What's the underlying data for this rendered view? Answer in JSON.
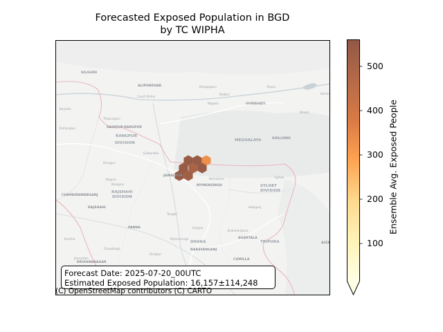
{
  "title_line1": "Forecasted Exposed Population in BGD",
  "title_line2": "by TC WIPHA",
  "info": {
    "forecast_date": "Forecast Date: 2025-07-20_00UTC",
    "estimated_population": "Estimated Exposed Population: 16,157±114,248"
  },
  "attribution": "(C) OpenStreetMap contributors (C) CARTO",
  "colorbar": {
    "label": "Ensemble Avg. Exposed People",
    "ticks": [
      "100",
      "200",
      "300",
      "400",
      "500"
    ],
    "tick_values": [
      100,
      200,
      300,
      400,
      500
    ],
    "range": [
      15,
      560
    ],
    "extend": "min",
    "colors": [
      "#ffffe5",
      "#fff3b6",
      "#fed98e",
      "#fea450",
      "#d97a45",
      "#b56a48",
      "#925845"
    ]
  },
  "map_labels": [
    {
      "text": "SILIGURI",
      "cls": ""
    },
    {
      "text": "ALIPURDUAR",
      "cls": ""
    },
    {
      "text": "Bongaigaon",
      "cls": "sm"
    },
    {
      "text": "Tezpur",
      "cls": "sm"
    },
    {
      "text": "Cooch Behar",
      "cls": "sm"
    },
    {
      "text": "Barpeta",
      "cls": "sm"
    },
    {
      "text": "Nalbari",
      "cls": "sm"
    },
    {
      "text": "GUWAHATI",
      "cls": ""
    },
    {
      "text": "Nagaon",
      "cls": "sm"
    },
    {
      "text": "Dhubri",
      "cls": "sm"
    },
    {
      "text": "Kishanganj",
      "cls": "sm"
    },
    {
      "text": "Thakurgaon",
      "cls": "sm"
    },
    {
      "text": "SAIDPUR",
      "cls": ""
    },
    {
      "text": "RANGPUR",
      "cls": ""
    },
    {
      "text": "RANGPUR",
      "cls": "big"
    },
    {
      "text": "DIVISION",
      "cls": "big"
    },
    {
      "text": "MEGHALAYA",
      "cls": "big"
    },
    {
      "text": "SHILLONG",
      "cls": ""
    },
    {
      "text": "Gaibandha",
      "cls": "sm"
    },
    {
      "text": "Dinajpur",
      "cls": "sm"
    },
    {
      "text": "JAMALPUR",
      "cls": ""
    },
    {
      "text": "Netrakona",
      "cls": "sm"
    },
    {
      "text": "MYMENSINGH",
      "cls": ""
    },
    {
      "text": "Naogaon",
      "cls": "sm"
    },
    {
      "text": "RAJSHAHI",
      "cls": "big"
    },
    {
      "text": "DIVISION",
      "cls": "big"
    },
    {
      "text": "Bogura",
      "cls": "sm"
    },
    {
      "text": "Sylhet",
      "cls": "sm"
    },
    {
      "text": "SYLHET",
      "cls": "big"
    },
    {
      "text": "DIVISION",
      "cls": "big"
    },
    {
      "text": "CHAPAINAWABGANJ",
      "cls": ""
    },
    {
      "text": "RAJSHAHI",
      "cls": ""
    },
    {
      "text": "Tangail",
      "cls": "sm"
    },
    {
      "text": "Habiganj",
      "cls": "sm"
    },
    {
      "text": "PABNA",
      "cls": ""
    },
    {
      "text": "Gazipur",
      "cls": "sm"
    },
    {
      "text": "Brahmanbaria",
      "cls": "sm"
    },
    {
      "text": "Kushtia",
      "cls": "sm"
    },
    {
      "text": "DHAKA",
      "cls": "big"
    },
    {
      "text": "AGARTALA",
      "cls": ""
    },
    {
      "text": "TRIPURA",
      "cls": "big"
    },
    {
      "text": "Chuadanga",
      "cls": "sm"
    },
    {
      "text": "NARAYANGANJ",
      "cls": ""
    },
    {
      "text": "Jhenaidah",
      "cls": "sm"
    },
    {
      "text": "Faridpur",
      "cls": "sm"
    },
    {
      "text": "CUMILLA",
      "cls": ""
    },
    {
      "text": "KRISHNANAGAR",
      "cls": ""
    },
    {
      "text": "Mymensingh",
      "cls": "sm"
    },
    {
      "text": "AIZA",
      "cls": ""
    },
    {
      "text": "Kohima",
      "cls": "sm"
    }
  ],
  "exposure_hexes": [
    {
      "value": 545
    },
    {
      "value": 545
    },
    {
      "value": 330
    },
    {
      "value": 545
    },
    {
      "value": 500
    },
    {
      "value": 545
    },
    {
      "value": 545
    },
    {
      "value": 520
    }
  ]
}
